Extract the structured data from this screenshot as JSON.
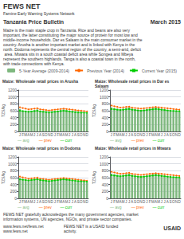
{
  "title": "Tanzania Price Bulletin",
  "subtitle": "March 2015",
  "annotations": [
    "FEWS NET",
    "Famine Early Warning Systems Network",
    "Maize is the main staple crop in Tanzania. Rice and beans are also very important, the latter constituting the major source of protein for most low and middle-income households. Dar es Salaam is the main consumer market in the country. Arusha is another important market and is linked with Kenya in the north. Dodoma represents the central region of the country, a semi-arid, deficit area. Mtwara sits in a south coastal deficit area while Songea and Mbeya represent the southern highlands. Tanga is also a coastal town in the north, with trade connections with Kenya.",
    "FEWS NET gratefully acknowledges the many government agencies, market information systems, UN agencies, NGOs, and private sector companies.",
    "www.fews.net/fews.net\nwww.fews.net",
    "FEWS NET is a USAID funded activity.",
    "USAID"
  ],
  "chart_data": [
    {
      "type": "bar",
      "title": "Maize: Wholesale retail prices in Arusha",
      "categories": [
        "J",
        "F",
        "M",
        "A",
        "M",
        "J",
        "J",
        "A",
        "S",
        "O",
        "N",
        "D",
        "J",
        "F",
        "M",
        "A",
        "M",
        "J",
        "J",
        "A",
        "S",
        "O",
        "N",
        "D"
      ],
      "series": [
        {
          "name": "5-Year Average (2009-2014)",
          "type": "bar",
          "color": "#7fb87f",
          "values": [
            650,
            600,
            580,
            560,
            600,
            620,
            640,
            580,
            560,
            550,
            540,
            560,
            580,
            600,
            620,
            640,
            620,
            600,
            580,
            560,
            540,
            530,
            520,
            510
          ]
        },
        {
          "name": "Previous Year (2014)",
          "type": "line",
          "color": "#ff6600",
          "marker": "circle",
          "values": [
            700,
            680,
            660,
            640,
            650,
            660,
            670,
            640,
            630,
            620,
            610,
            620,
            630,
            640,
            650,
            660,
            650,
            640,
            630,
            620,
            610,
            600,
            590,
            580
          ]
        },
        {
          "name": "Current Year (2015)",
          "type": "line",
          "color": "#00cc00",
          "marker": "square",
          "values": [
            600,
            590,
            580,
            570,
            580,
            590,
            600,
            580,
            570,
            560,
            550,
            560,
            570,
            580,
            590,
            600,
            590,
            580,
            570,
            560,
            550,
            545,
            540,
            535
          ]
        }
      ],
      "ylabel": "TZS/kg",
      "ylim": [
        0,
        1200
      ],
      "yticks": [
        0,
        200,
        400,
        600,
        800,
        1000,
        1200
      ],
      "grid": true,
      "annotations": [
        "— avg",
        "— prev",
        "— curr"
      ]
    },
    {
      "type": "bar",
      "title": "Maize: Wholesale retail prices in Dar es Salaam",
      "categories": [
        "J",
        "F",
        "M",
        "A",
        "M",
        "J",
        "J",
        "A",
        "S",
        "O",
        "N",
        "D",
        "J",
        "F",
        "M",
        "A",
        "M",
        "J",
        "J",
        "A",
        "S",
        "O",
        "N",
        "D"
      ],
      "series": [
        {
          "name": "5-Year Average (2009-2014)",
          "type": "bar",
          "color": "#7fb87f",
          "values": [
            700,
            680,
            660,
            640,
            660,
            680,
            700,
            660,
            640,
            630,
            620,
            630,
            640,
            660,
            680,
            700,
            680,
            660,
            640,
            620,
            600,
            590,
            580,
            570
          ]
        },
        {
          "name": "Previous Year (2014)",
          "type": "line",
          "color": "#ff6600",
          "marker": "circle",
          "values": [
            750,
            730,
            710,
            690,
            700,
            710,
            720,
            690,
            680,
            670,
            660,
            670,
            680,
            690,
            700,
            710,
            700,
            690,
            680,
            670,
            660,
            650,
            640,
            630
          ]
        },
        {
          "name": "Current Year (2015)",
          "type": "line",
          "color": "#00cc00",
          "marker": "square",
          "values": [
            650,
            640,
            630,
            620,
            630,
            640,
            650,
            630,
            620,
            610,
            600,
            610,
            620,
            630,
            640,
            650,
            640,
            630,
            620,
            610,
            600,
            595,
            590,
            585
          ]
        }
      ],
      "ylabel": "TZS/kg",
      "ylim": [
        0,
        1200
      ],
      "yticks": [
        0,
        200,
        400,
        600,
        800,
        1000,
        1200
      ],
      "grid": true,
      "annotations": [
        "— avg",
        "— prev",
        "— curr"
      ]
    },
    {
      "type": "bar",
      "title": "Maize: Wholesale retail prices in Dodoma",
      "categories": [
        "J",
        "F",
        "M",
        "A",
        "M",
        "J",
        "J",
        "A",
        "S",
        "O",
        "N",
        "D",
        "J",
        "F",
        "M",
        "A",
        "M",
        "J",
        "J",
        "A",
        "S",
        "O",
        "N",
        "D"
      ],
      "series": [
        {
          "name": "5-Year Average (2009-2014)",
          "type": "bar",
          "color": "#7fb87f",
          "values": [
            580,
            560,
            540,
            520,
            540,
            560,
            580,
            540,
            520,
            510,
            500,
            510,
            520,
            540,
            560,
            580,
            560,
            540,
            520,
            500,
            490,
            480,
            470,
            460
          ]
        },
        {
          "name": "Previous Year (2014)",
          "type": "line",
          "color": "#ff6600",
          "marker": "circle",
          "values": [
            630,
            610,
            590,
            570,
            580,
            590,
            600,
            570,
            560,
            550,
            540,
            550,
            560,
            570,
            580,
            590,
            580,
            570,
            560,
            550,
            540,
            530,
            520,
            510
          ]
        },
        {
          "name": "Current Year (2015)",
          "type": "line",
          "color": "#00cc00",
          "marker": "square",
          "values": [
            550,
            540,
            530,
            520,
            530,
            540,
            550,
            530,
            520,
            510,
            500,
            510,
            520,
            530,
            540,
            550,
            540,
            530,
            520,
            510,
            500,
            495,
            490,
            485
          ]
        }
      ],
      "ylabel": "TZS/kg",
      "ylim": [
        0,
        1200
      ],
      "yticks": [
        0,
        200,
        400,
        600,
        800,
        1000,
        1200
      ],
      "grid": true,
      "annotations": [
        "— avg",
        "— prev",
        "— curr"
      ]
    },
    {
      "type": "bar",
      "title": "Maize: Wholesale retail prices in Mtwara",
      "categories": [
        "J",
        "F",
        "M",
        "A",
        "M",
        "J",
        "J",
        "A",
        "S",
        "O",
        "N",
        "D",
        "J",
        "F",
        "M",
        "A",
        "M",
        "J",
        "J",
        "A",
        "S",
        "O",
        "N",
        "D"
      ],
      "series": [
        {
          "name": "5-Year Average (2009-2014)",
          "type": "bar",
          "color": "#7fb87f",
          "values": [
            720,
            700,
            680,
            660,
            680,
            700,
            720,
            680,
            660,
            650,
            640,
            650,
            660,
            680,
            700,
            720,
            700,
            680,
            660,
            640,
            620,
            610,
            600,
            590
          ]
        },
        {
          "name": "Previous Year (2014)",
          "type": "line",
          "color": "#ff6600",
          "marker": "circle",
          "values": [
            770,
            750,
            730,
            710,
            720,
            730,
            740,
            710,
            700,
            690,
            680,
            690,
            700,
            710,
            720,
            730,
            720,
            710,
            700,
            690,
            680,
            670,
            660,
            650
          ]
        },
        {
          "name": "Current Year (2015)",
          "type": "line",
          "color": "#00cc00",
          "marker": "square",
          "values": [
            670,
            660,
            650,
            640,
            650,
            660,
            670,
            650,
            640,
            630,
            620,
            630,
            640,
            650,
            660,
            670,
            660,
            650,
            640,
            630,
            620,
            615,
            610,
            605
          ]
        }
      ],
      "ylabel": "TZS/kg",
      "ylim": [
        0,
        1200
      ],
      "yticks": [
        0,
        200,
        400,
        600,
        800,
        1000,
        1200
      ],
      "grid": true,
      "annotations": [
        "— avg",
        "— prev",
        "— curr"
      ]
    }
  ]
}
